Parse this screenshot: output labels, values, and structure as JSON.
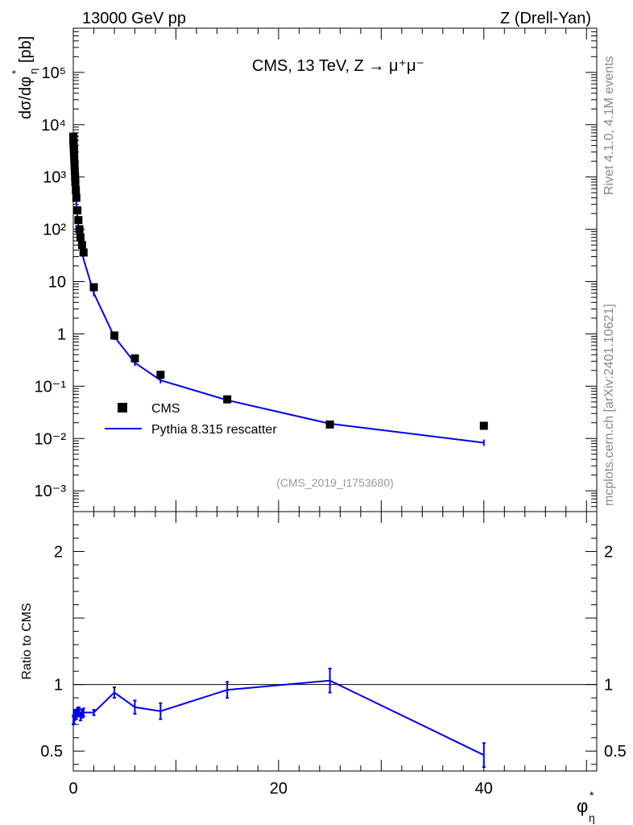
{
  "header": {
    "left": "13000 GeV pp",
    "right": "Z (Drell-Yan)",
    "title": "CMS, 13 TeV, Z → μ⁺μ⁻",
    "analysis": "(CMS_2019_I1753680)"
  },
  "side": {
    "rivet": "Rivet 4.1.0,  4.1M events",
    "mcplots": "mcplots.cern.ch [arXiv:2401.10621]"
  },
  "legend": {
    "data": "CMS",
    "mc": "Pythia 8.315 rescatter"
  },
  "colors": {
    "data": "#000000",
    "mc": "#0000ee"
  },
  "chart_data": [
    {
      "type": "scatter",
      "title": "CMS, 13 TeV, Z → μ⁺μ⁻",
      "xlabel": "φ*_η",
      "ylabel": "dσ/dφ*_η [pb]",
      "yscale": "log",
      "xlim": [
        0,
        51
      ],
      "ylim": [
        0.0004,
        700000
      ],
      "y_ticks": [
        "10⁻³",
        "10⁻²",
        "10⁻¹",
        "1",
        "10",
        "10²",
        "10³",
        "10⁴",
        "10⁵"
      ],
      "series": [
        {
          "name": "CMS",
          "x": [
            0.002,
            0.006,
            0.01,
            0.014,
            0.02,
            0.027,
            0.035,
            0.045,
            0.055,
            0.065,
            0.08,
            0.1,
            0.125,
            0.15,
            0.175,
            0.2,
            0.25,
            0.3,
            0.4,
            0.5,
            0.6,
            0.7,
            0.85,
            1.0,
            2.0,
            4.0,
            6.0,
            8.5,
            15.0,
            25.0,
            40.0
          ],
          "y": [
            5900,
            5800,
            5600,
            5400,
            5100,
            4700,
            4300,
            3900,
            3500,
            3100,
            2600,
            2100,
            1650,
            1300,
            1000,
            800,
            560,
            400,
            230,
            150,
            100,
            70,
            50,
            36,
            7.8,
            0.93,
            0.34,
            0.165,
            0.056,
            0.0185,
            0.0175
          ]
        },
        {
          "name": "Pythia 8.315 rescatter",
          "x": [
            0.002,
            0.006,
            0.01,
            0.014,
            0.02,
            0.027,
            0.035,
            0.045,
            0.055,
            0.065,
            0.08,
            0.1,
            0.125,
            0.15,
            0.175,
            0.2,
            0.25,
            0.3,
            0.4,
            0.5,
            0.6,
            0.7,
            0.85,
            1.0,
            2.0,
            4.0,
            6.0,
            8.5,
            15.0,
            25.0,
            40.0
          ],
          "y": [
            4300,
            4200,
            4100,
            3950,
            3750,
            3450,
            3150,
            2850,
            2550,
            2300,
            1950,
            1560,
            1250,
            980,
            760,
            600,
            420,
            300,
            175,
            115,
            77,
            53,
            38,
            27,
            6.0,
            0.88,
            0.28,
            0.13,
            0.054,
            0.0192,
            0.0083
          ]
        }
      ]
    },
    {
      "type": "line",
      "ylabel": "Ratio to CMS",
      "xlabel": "φ*_η",
      "xlim": [
        0,
        51
      ],
      "ylim": [
        0.35,
        2.3
      ],
      "x_ticks": [
        "0",
        "20",
        "40"
      ],
      "y_ticks": [
        "0.5",
        "1",
        "2"
      ],
      "reference": 1.0,
      "series": [
        {
          "name": "Pythia 8.315 rescatter",
          "x": [
            0.01,
            0.05,
            0.1,
            0.15,
            0.2,
            0.3,
            0.4,
            0.5,
            0.6,
            0.7,
            0.85,
            1.0,
            2.0,
            4.0,
            6.0,
            8.5,
            15.0,
            25.0,
            40.0
          ],
          "y": [
            0.73,
            0.74,
            0.76,
            0.77,
            0.78,
            0.77,
            0.79,
            0.8,
            0.79,
            0.76,
            0.78,
            0.79,
            0.79,
            0.94,
            0.83,
            0.8,
            0.96,
            1.03,
            0.47
          ],
          "err": [
            0.03,
            0.03,
            0.03,
            0.03,
            0.03,
            0.03,
            0.03,
            0.03,
            0.03,
            0.03,
            0.03,
            0.03,
            0.02,
            0.04,
            0.05,
            0.06,
            0.06,
            0.09,
            0.09
          ]
        }
      ]
    }
  ]
}
